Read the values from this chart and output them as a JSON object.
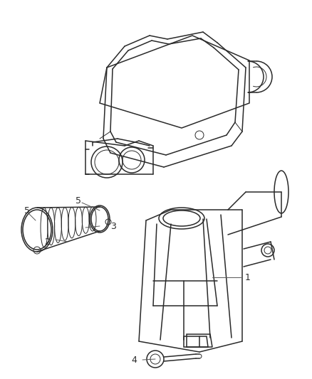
{
  "background_color": "#ffffff",
  "line_color": "#2a2a2a",
  "callout_color": "#555555",
  "figure_width": 4.38,
  "figure_height": 5.33,
  "dpi": 100
}
